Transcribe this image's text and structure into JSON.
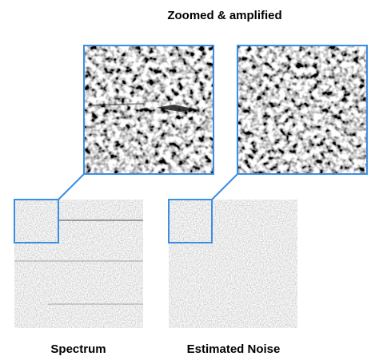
{
  "title": "Zoomed & amplified",
  "panels": [
    {
      "label": "Spectrum"
    },
    {
      "label": "Estimated Noise"
    }
  ]
}
